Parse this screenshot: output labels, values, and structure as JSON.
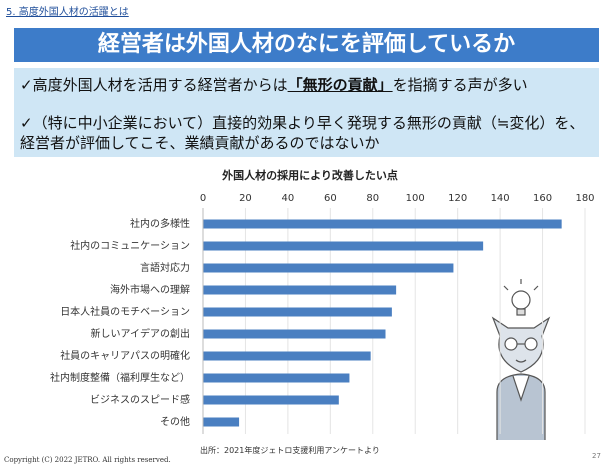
{
  "header": {
    "section": "5. 高度外国人材の活躍とは",
    "title": "経営者は外国人材のなにを評価しているか"
  },
  "bullets": [
    {
      "before": "✓高度外国人材を活用する経営者からは",
      "emphasis": "「無形の貢献」",
      "after": "を指摘する声が多い"
    },
    {
      "text": "✓（特に中小企業において）直接的効果より早く発現する無形の貢献（≒変化）を、経営者が評価してこそ、業績貢献があるのではないか"
    }
  ],
  "chart_data": {
    "type": "hbar",
    "title": "外国人材の採用により改善したい点",
    "categories": [
      "社内の多様性",
      "社内のコミュニケーション",
      "言語対応力",
      "海外市場への理解",
      "日本人社員のモチベーション",
      "新しいアイデアの創出",
      "社員のキャリアパスの明確化",
      "社内制度整備（福利厚生など）",
      "ビジネスのスピード感",
      "その他"
    ],
    "values": [
      169,
      132,
      118,
      91,
      89,
      86,
      79,
      69,
      64,
      17
    ],
    "color": "#4a7fc1",
    "xlim": [
      0,
      180
    ],
    "xticks": [
      0,
      20,
      40,
      60,
      80,
      100,
      120,
      140,
      160,
      180
    ],
    "grid": true
  },
  "source": "出所：2021年度ジェトロ支援利用アンケートより",
  "footer": {
    "copyright": "Copyright (C) 2022  JETRO. All rights reserved.",
    "page": "27"
  }
}
